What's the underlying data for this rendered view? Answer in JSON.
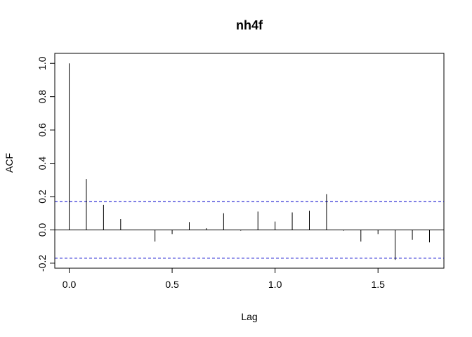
{
  "chart_data": {
    "type": "bar",
    "title": "nh4f",
    "xlabel": "Lag",
    "ylabel": "ACF",
    "xlim": [
      -0.07,
      1.82
    ],
    "ylim": [
      -0.23,
      1.06
    ],
    "x_ticks": [
      0.0,
      0.5,
      1.0,
      1.5
    ],
    "x_tick_labels": [
      "0.0",
      "0.5",
      "1.0",
      "1.5"
    ],
    "y_ticks": [
      -0.2,
      0.0,
      0.2,
      0.4,
      0.6,
      0.8,
      1.0
    ],
    "y_tick_labels": [
      "-0.2",
      "0.0",
      "0.2",
      "0.4",
      "0.6",
      "0.8",
      "1.0"
    ],
    "lags": [
      0.0,
      0.0833,
      0.1667,
      0.25,
      0.3333,
      0.4167,
      0.5,
      0.5833,
      0.6667,
      0.75,
      0.8333,
      0.9167,
      1.0,
      1.0833,
      1.1667,
      1.25,
      1.3333,
      1.4167,
      1.5,
      1.5833,
      1.6667,
      1.75
    ],
    "acf": [
      1.0,
      0.305,
      0.15,
      0.065,
      0.0,
      -0.07,
      -0.025,
      0.047,
      0.01,
      0.1,
      -0.005,
      0.11,
      0.05,
      0.105,
      0.115,
      0.215,
      -0.005,
      -0.07,
      -0.025,
      -0.18,
      -0.06,
      -0.075
    ],
    "confidence_bounds": [
      0.17,
      -0.17
    ],
    "grid": false,
    "colors": {
      "spikes": "#000000",
      "confidence": "#0000cc",
      "zero_line": "#000000"
    }
  }
}
